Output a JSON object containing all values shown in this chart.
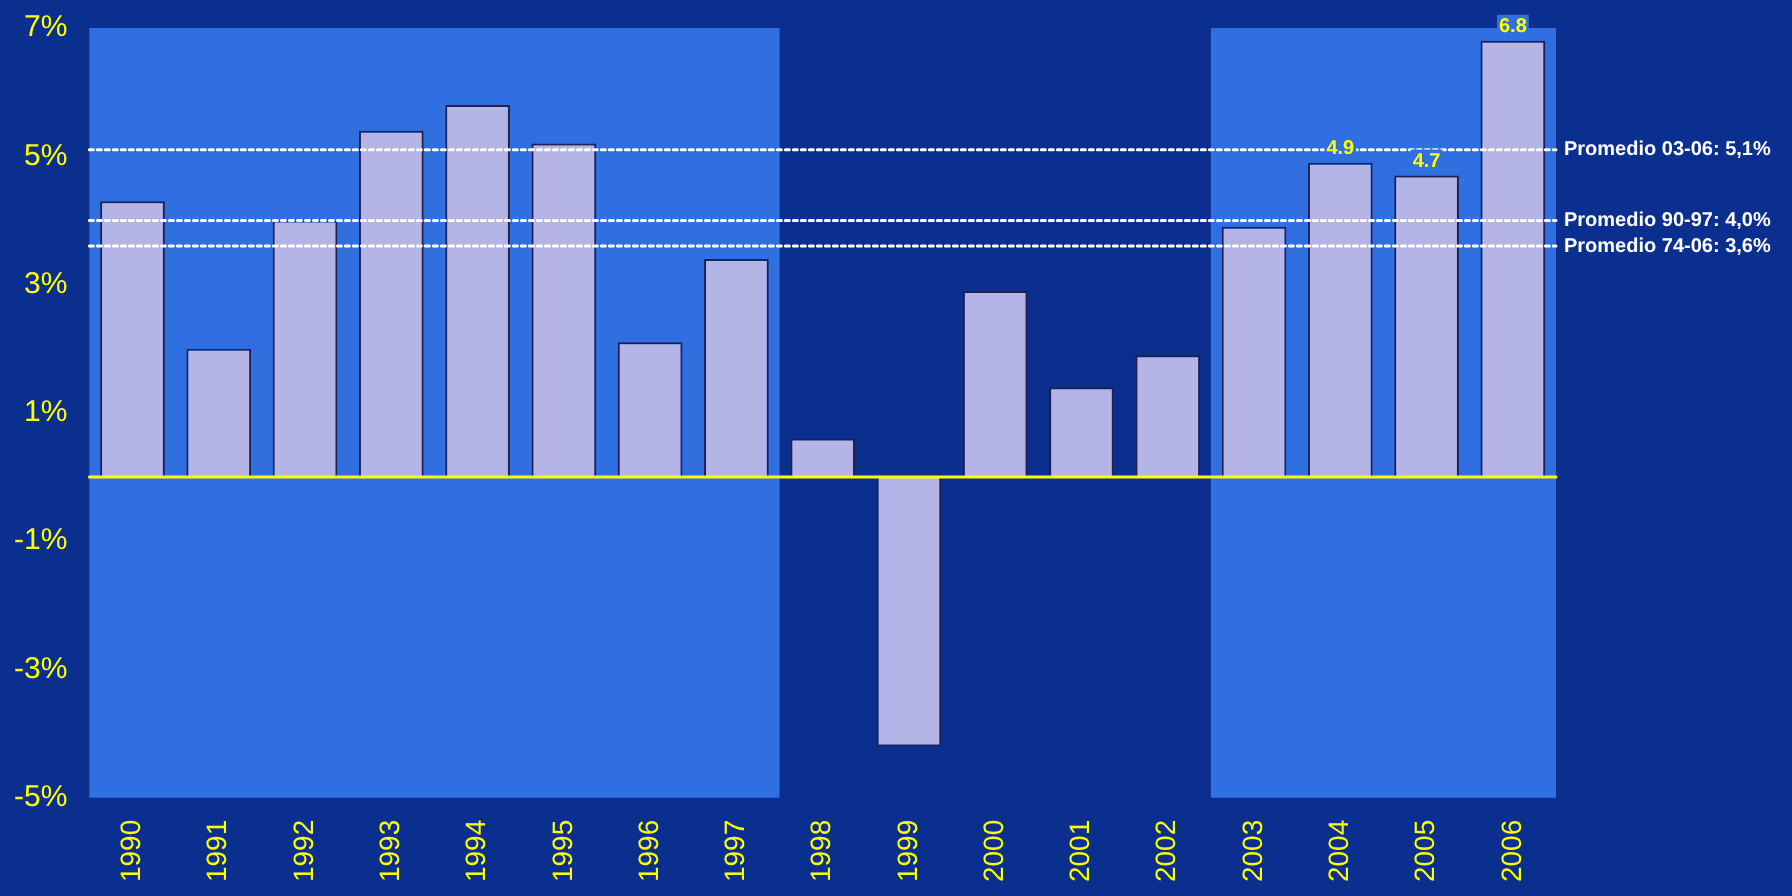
{
  "chart_data": {
    "type": "bar",
    "categories": [
      "1990",
      "1991",
      "1992",
      "1993",
      "1994",
      "1995",
      "1996",
      "1997",
      "1998",
      "1999",
      "2000",
      "2001",
      "2002",
      "2003",
      "2004",
      "2005",
      "2006"
    ],
    "values": [
      4.3,
      2.0,
      4.0,
      5.4,
      5.8,
      5.2,
      2.1,
      3.4,
      0.6,
      -4.2,
      2.9,
      1.4,
      1.9,
      3.9,
      4.9,
      4.7,
      6.8
    ],
    "value_labels": [
      null,
      null,
      null,
      null,
      null,
      null,
      null,
      null,
      null,
      null,
      null,
      null,
      null,
      null,
      "4.9",
      "4.7",
      "6.8"
    ],
    "color": "#b4b4e6",
    "ylim": [
      -5,
      7
    ],
    "yticks": [
      {
        "value": -5,
        "label": "-5%"
      },
      {
        "value": -3,
        "label": "-3%"
      },
      {
        "value": -1,
        "label": "-1%"
      },
      {
        "value": 1,
        "label": "1%"
      },
      {
        "value": 3,
        "label": "3%"
      },
      {
        "value": 5,
        "label": "5%"
      },
      {
        "value": 7,
        "label": "7%"
      }
    ],
    "ref_lines": [
      {
        "axis": "y",
        "value": 0,
        "color": "#ffff00",
        "line_style": "solid"
      },
      {
        "axis": "y",
        "value": 4.0,
        "label": "Promedio 90-97: 4,0%",
        "color": "#ffffff",
        "line_style": "dotted"
      },
      {
        "axis": "y",
        "value": 3.6,
        "label": "Promedio 74-06: 3,6%",
        "color": "#ffffff",
        "line_style": "dotted"
      },
      {
        "axis": "y",
        "value": 5.1,
        "label": "Promedio 03-06: 5,1%",
        "color": "#ffffff",
        "line_style": "dotted"
      }
    ],
    "bands": [
      {
        "axis": "x",
        "from": "1990",
        "to": "1997",
        "color": "#2f6fe0"
      },
      {
        "axis": "x",
        "from": "2003",
        "to": "2006",
        "color": "#2f6fe0"
      }
    ],
    "grid": false,
    "legend": false
  }
}
